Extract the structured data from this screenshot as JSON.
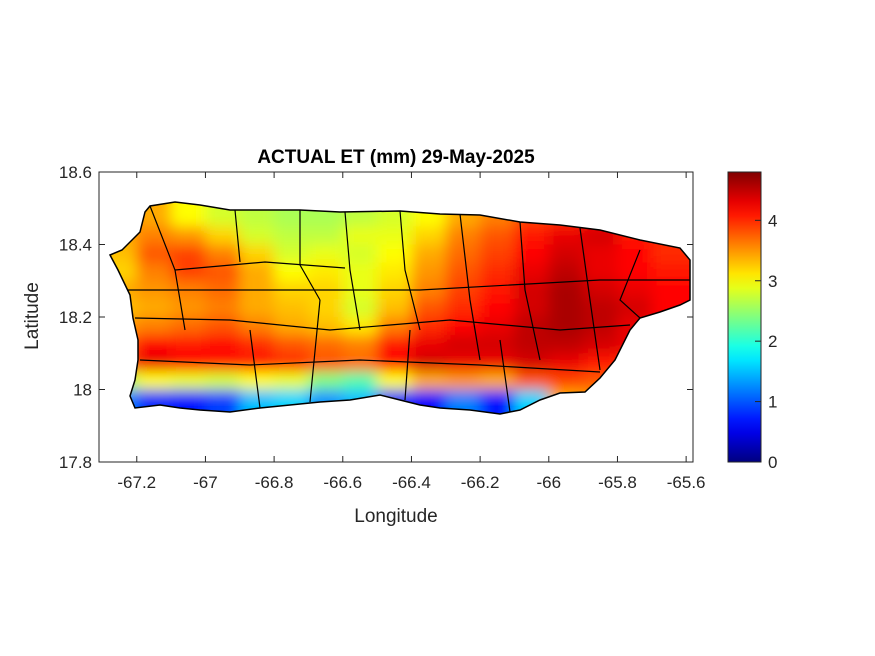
{
  "chart_data": {
    "type": "heatmap",
    "title": "ACTUAL ET (mm) 29-May-2025",
    "xlabel": "Longitude",
    "ylabel": "Latitude",
    "xlim": [
      -67.31,
      -65.58
    ],
    "ylim": [
      17.8,
      18.6
    ],
    "xticks": [
      "-67.2",
      "-67",
      "-66.8",
      "-66.6",
      "-66.4",
      "-66.2",
      "-66",
      "-65.8",
      "-65.6"
    ],
    "yticks": [
      "18.6",
      "18.4",
      "18.2",
      "18",
      "17.8"
    ],
    "colormap": "jet",
    "colorbar": {
      "range": [
        0,
        4.8
      ],
      "ticks": [
        "0",
        "1",
        "2",
        "3",
        "4"
      ],
      "placement": "right"
    },
    "grid": false,
    "lon": [
      -67.25,
      -67.15,
      -67.05,
      -66.95,
      -66.85,
      -66.75,
      -66.65,
      -66.55,
      -66.45,
      -66.35,
      -66.25,
      -66.15,
      -66.05,
      -65.95,
      -65.85,
      -65.75,
      -65.65
    ],
    "lat": [
      18.475,
      18.425,
      18.375,
      18.325,
      18.275,
      18.225,
      18.175,
      18.125,
      18.075,
      18.025,
      17.975
    ],
    "values": [
      [
        3.6,
        3.4,
        3.0,
        2.8,
        2.7,
        2.6,
        2.6,
        2.7,
        2.8,
        3.0,
        3.4,
        3.6,
        3.9,
        4.0,
        4.2,
        4.0,
        3.8
      ],
      [
        3.4,
        3.6,
        3.5,
        3.2,
        2.8,
        2.7,
        2.7,
        2.9,
        2.9,
        3.2,
        3.6,
        3.8,
        4.1,
        4.3,
        4.4,
        4.1,
        4.0
      ],
      [
        3.3,
        3.8,
        3.9,
        3.6,
        3.2,
        2.8,
        2.9,
        2.8,
        3.0,
        3.4,
        3.7,
        3.9,
        4.2,
        4.4,
        4.3,
        4.2,
        4.0
      ],
      [
        3.2,
        3.6,
        3.9,
        3.8,
        3.4,
        3.0,
        3.1,
        2.9,
        3.1,
        3.5,
        3.8,
        4.0,
        4.3,
        4.5,
        4.3,
        4.2,
        4.1
      ],
      [
        3.4,
        3.5,
        3.6,
        3.7,
        3.4,
        3.2,
        3.2,
        2.9,
        3.2,
        3.6,
        3.9,
        4.1,
        4.4,
        4.6,
        4.4,
        4.3,
        4.2
      ],
      [
        3.3,
        3.4,
        3.5,
        3.6,
        3.4,
        3.3,
        3.2,
        2.8,
        3.3,
        3.8,
        4.0,
        4.2,
        4.4,
        4.6,
        4.5,
        4.4,
        4.2
      ],
      [
        3.5,
        3.6,
        3.7,
        3.8,
        3.6,
        3.4,
        3.3,
        3.1,
        3.6,
        4.0,
        4.2,
        4.3,
        4.5,
        4.6,
        4.5,
        4.3,
        4.2
      ],
      [
        3.8,
        4.2,
        4.1,
        4.2,
        4.0,
        3.8,
        3.7,
        3.6,
        4.1,
        4.3,
        4.4,
        4.4,
        4.5,
        4.5,
        4.4,
        4.3,
        4.1
      ],
      [
        3.9,
        4.3,
        4.2,
        4.1,
        4.1,
        4.0,
        3.8,
        3.7,
        4.2,
        4.4,
        4.3,
        4.3,
        4.4,
        4.3,
        4.1,
        4.0,
        3.9
      ],
      [
        2.6,
        3.0,
        2.9,
        2.8,
        3.0,
        2.9,
        2.4,
        2.2,
        3.0,
        3.4,
        3.5,
        3.4,
        3.8,
        3.9,
        3.8,
        3.7,
        3.6
      ],
      [
        1.2,
        0.8,
        0.7,
        0.9,
        1.5,
        1.6,
        1.3,
        1.5,
        0.8,
        0.6,
        1.2,
        0.7,
        1.6,
        3.4,
        3.5,
        3.5,
        3.5
      ]
    ]
  }
}
